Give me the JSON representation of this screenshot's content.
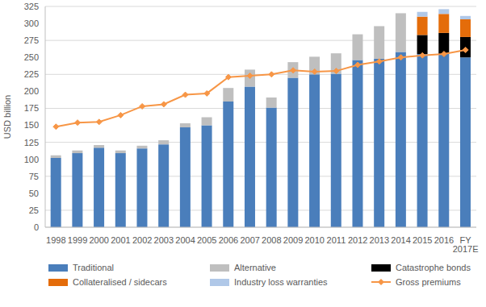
{
  "chart_data": {
    "type": "bar",
    "stacked": true,
    "grid": true,
    "y_label": "USD billion",
    "categories": [
      "1998",
      "1999",
      "2000",
      "2001",
      "2002",
      "2003",
      "2004",
      "2005",
      "2006",
      "2007",
      "2008",
      "2009",
      "2010",
      "2011",
      "2012",
      "2013",
      "2014",
      "2015",
      "2016",
      "FY 2017E"
    ],
    "ylim": [
      0,
      325
    ],
    "yticks": [
      0,
      25,
      50,
      75,
      100,
      125,
      150,
      175,
      200,
      225,
      250,
      275,
      300,
      325
    ],
    "series": [
      {
        "name": "Traditional",
        "type": "bar",
        "color": "#4a7ebb",
        "values": [
          102,
          109,
          117,
          109,
          116,
          122,
          147,
          150,
          185,
          207,
          176,
          220,
          225,
          226,
          246,
          248,
          258,
          255,
          255,
          250
        ]
      },
      {
        "name": "Alternative",
        "type": "bar",
        "color": "#bfbfbf",
        "values": [
          4,
          4,
          4,
          4,
          4,
          6,
          6,
          12,
          20,
          25,
          15,
          23,
          26,
          30,
          38,
          48,
          57,
          0,
          0,
          0
        ]
      },
      {
        "name": "Catastrophe bonds",
        "type": "bar",
        "color": "#000000",
        "values": [
          0,
          0,
          0,
          0,
          0,
          0,
          0,
          0,
          0,
          0,
          0,
          0,
          0,
          0,
          0,
          0,
          0,
          28,
          31,
          30
        ]
      },
      {
        "name": "Collateralised / sidecars",
        "type": "bar",
        "color": "#e46c0a",
        "values": [
          0,
          0,
          0,
          0,
          0,
          0,
          0,
          0,
          0,
          0,
          0,
          0,
          0,
          0,
          0,
          0,
          0,
          27,
          28,
          26
        ]
      },
      {
        "name": "Industry loss warranties",
        "type": "bar",
        "color": "#b0c8e8",
        "values": [
          0,
          0,
          0,
          0,
          0,
          0,
          0,
          0,
          0,
          0,
          0,
          0,
          0,
          0,
          0,
          0,
          0,
          7,
          7,
          5
        ]
      },
      {
        "name": "Gross premiums",
        "type": "line",
        "marker": "diamond",
        "color": "#f79646",
        "values": [
          148,
          154,
          155,
          165,
          178,
          181,
          195,
          197,
          221,
          223,
          225,
          231,
          229,
          230,
          239,
          244,
          250,
          253,
          255,
          261
        ]
      }
    ]
  }
}
